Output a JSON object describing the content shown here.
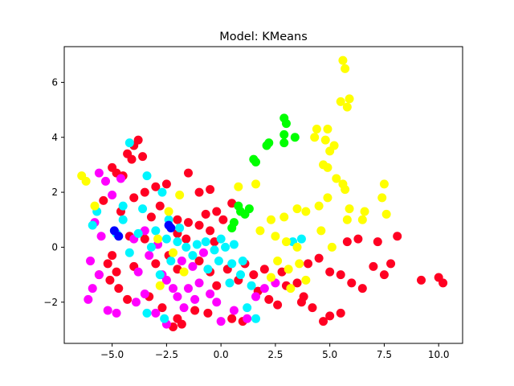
{
  "chart_data": {
    "type": "scatter",
    "title": "Model: KMeans",
    "xlabel": "",
    "ylabel": "",
    "xlim": [
      -7.2,
      11.1
    ],
    "ylim": [
      -3.5,
      7.3
    ],
    "xticks": [
      -5.0,
      -2.5,
      0.0,
      2.5,
      5.0,
      7.5,
      10.0
    ],
    "xtick_labels": [
      "−5.0",
      "−2.5",
      "0.0",
      "2.5",
      "5.0",
      "7.5",
      "10.0"
    ],
    "yticks": [
      -2,
      0,
      2,
      4,
      6
    ],
    "ytick_labels": [
      "−2",
      "0",
      "2",
      "4",
      "6"
    ],
    "grid": false,
    "legend": false,
    "series": [
      {
        "color": "#ff0022",
        "points": [
          [
            -4.3,
            3.4
          ],
          [
            -4.0,
            3.7
          ],
          [
            -3.8,
            3.9
          ],
          [
            -4.1,
            3.2
          ],
          [
            -3.6,
            3.3
          ],
          [
            -5.0,
            2.9
          ],
          [
            -4.8,
            2.7
          ],
          [
            -4.5,
            2.6
          ],
          [
            -1.5,
            2.7
          ],
          [
            -2.5,
            2.3
          ],
          [
            -3.5,
            2.0
          ],
          [
            -3.0,
            2.2
          ],
          [
            -5.4,
            1.7
          ],
          [
            -4.0,
            1.8
          ],
          [
            -1.0,
            2.0
          ],
          [
            -0.5,
            2.1
          ],
          [
            -0.2,
            1.3
          ],
          [
            0.1,
            1.0
          ],
          [
            -0.7,
            1.2
          ],
          [
            0.5,
            1.6
          ],
          [
            -3.2,
            1.1
          ],
          [
            -4.6,
            1.3
          ],
          [
            -2.8,
            1.5
          ],
          [
            -2.0,
            1.0
          ],
          [
            -1.5,
            0.9
          ],
          [
            -1.0,
            0.8
          ],
          [
            -0.5,
            0.6
          ],
          [
            -3.5,
            0.3
          ],
          [
            -4.2,
            0.4
          ],
          [
            -2.0,
            0.5
          ],
          [
            -5.0,
            -0.3
          ],
          [
            -5.2,
            -0.6
          ],
          [
            -4.8,
            -0.9
          ],
          [
            -5.1,
            -1.2
          ],
          [
            -4.7,
            -1.5
          ],
          [
            -4.0,
            -0.7
          ],
          [
            -3.0,
            -0.6
          ],
          [
            -2.0,
            -0.8
          ],
          [
            -1.0,
            -0.5
          ],
          [
            -0.5,
            -0.9
          ],
          [
            0.3,
            -0.8
          ],
          [
            -0.2,
            -1.4
          ],
          [
            0.8,
            -1.2
          ],
          [
            1.5,
            -1.0
          ],
          [
            2.0,
            -0.8
          ],
          [
            1.7,
            -1.6
          ],
          [
            2.2,
            -1.9
          ],
          [
            2.6,
            -2.1
          ],
          [
            3.0,
            -1.4
          ],
          [
            3.5,
            -1.3
          ],
          [
            3.8,
            -1.8
          ],
          [
            4.2,
            -2.2
          ],
          [
            3.7,
            -2.0
          ],
          [
            4.0,
            -0.6
          ],
          [
            4.5,
            -0.4
          ],
          [
            5.0,
            -0.9
          ],
          [
            5.5,
            -1.0
          ],
          [
            6.0,
            -1.3
          ],
          [
            6.5,
            -1.5
          ],
          [
            7.0,
            -0.7
          ],
          [
            7.5,
            -1.0
          ],
          [
            7.8,
            -0.6
          ],
          [
            8.1,
            0.4
          ],
          [
            7.2,
            0.2
          ],
          [
            6.3,
            0.3
          ],
          [
            5.8,
            0.2
          ],
          [
            9.2,
            -1.2
          ],
          [
            10.0,
            -1.1
          ],
          [
            10.2,
            -1.3
          ],
          [
            5.0,
            -2.5
          ],
          [
            4.7,
            -2.7
          ],
          [
            5.5,
            -2.4
          ],
          [
            -2.0,
            -2.6
          ],
          [
            -2.2,
            -2.9
          ],
          [
            -1.8,
            -2.8
          ],
          [
            0.5,
            -2.6
          ],
          [
            1.0,
            -2.7
          ],
          [
            -3.3,
            -1.8
          ],
          [
            -2.7,
            -2.2
          ],
          [
            -1.2,
            -2.3
          ],
          [
            -0.6,
            -2.4
          ],
          [
            -5.6,
            -1.0
          ],
          [
            -4.3,
            -1.9
          ],
          [
            -0.3,
            0.2
          ],
          [
            1.1,
            -0.6
          ],
          [
            2.8,
            -0.9
          ],
          [
            -1.6,
            0.3
          ],
          [
            -2.4,
            -0.3
          ]
        ]
      },
      {
        "color": "#ff00ff",
        "points": [
          [
            -5.6,
            2.7
          ],
          [
            -5.3,
            2.4
          ],
          [
            -4.6,
            2.5
          ],
          [
            -5.0,
            1.9
          ],
          [
            -5.8,
            0.9
          ],
          [
            -5.5,
            0.4
          ],
          [
            -6.0,
            -0.5
          ],
          [
            -5.6,
            -1.0
          ],
          [
            -5.9,
            -1.5
          ],
          [
            -6.1,
            -1.9
          ],
          [
            -5.2,
            -2.3
          ],
          [
            -4.8,
            -2.4
          ],
          [
            -3.5,
            -1.7
          ],
          [
            -3.0,
            -2.4
          ],
          [
            -2.5,
            -2.8
          ],
          [
            -2.0,
            -1.8
          ],
          [
            -1.5,
            -1.5
          ],
          [
            -1.0,
            -1.3
          ],
          [
            -0.5,
            -1.7
          ],
          [
            -0.2,
            -2.0
          ],
          [
            -1.2,
            -1.9
          ],
          [
            -2.2,
            -1.5
          ],
          [
            -2.7,
            -1.0
          ],
          [
            -1.8,
            -0.5
          ],
          [
            -1.3,
            -0.7
          ],
          [
            -3.5,
            0.6
          ],
          [
            -4.0,
            0.3
          ],
          [
            -2.9,
            0.1
          ],
          [
            -3.3,
            -0.3
          ],
          [
            1.2,
            -2.6
          ],
          [
            1.6,
            -1.8
          ],
          [
            2.0,
            -1.5
          ],
          [
            2.5,
            -1.3
          ],
          [
            -3.8,
            -0.9
          ],
          [
            -2.5,
            -1.2
          ],
          [
            -0.8,
            -0.2
          ],
          [
            0.0,
            -2.7
          ],
          [
            0.6,
            -2.3
          ],
          [
            -3.9,
            -2.0
          ],
          [
            -1.7,
            -2.2
          ]
        ]
      },
      {
        "color": "#00f5ff",
        "points": [
          [
            -4.2,
            3.8
          ],
          [
            -3.4,
            2.6
          ],
          [
            -2.7,
            2.0
          ],
          [
            -5.7,
            1.3
          ],
          [
            -4.5,
            1.5
          ],
          [
            -3.6,
            1.4
          ],
          [
            -2.4,
            1.0
          ],
          [
            -1.9,
            0.7
          ],
          [
            -4.8,
            0.5
          ],
          [
            -3.8,
            0.5
          ],
          [
            -3.0,
            0.6
          ],
          [
            -2.5,
            0.3
          ],
          [
            -2.0,
            0.2
          ],
          [
            -1.6,
            0.0
          ],
          [
            -1.1,
            0.1
          ],
          [
            -0.7,
            0.2
          ],
          [
            -0.3,
            -0.1
          ],
          [
            0.2,
            0.0
          ],
          [
            0.6,
            0.1
          ],
          [
            -0.1,
            -0.5
          ],
          [
            0.5,
            -0.6
          ],
          [
            1.0,
            -0.5
          ],
          [
            -3.2,
            0.0
          ],
          [
            -4.2,
            -0.2
          ],
          [
            -2.3,
            -0.5
          ],
          [
            -1.3,
            -0.3
          ],
          [
            0.4,
            -1.3
          ],
          [
            0.9,
            -1.0
          ],
          [
            1.4,
            -1.4
          ],
          [
            1.2,
            -2.2
          ],
          [
            1.6,
            -2.6
          ],
          [
            -3.4,
            -2.4
          ],
          [
            -2.6,
            -2.6
          ],
          [
            -5.9,
            0.8
          ],
          [
            -4.5,
            1.0
          ],
          [
            3.3,
            0.2
          ],
          [
            3.7,
            0.3
          ],
          [
            -2.8,
            -1.0
          ],
          [
            -0.6,
            -0.8
          ],
          [
            0.0,
            0.3
          ]
        ]
      },
      {
        "color": "#ffff00",
        "points": [
          [
            5.6,
            6.8
          ],
          [
            5.7,
            6.5
          ],
          [
            5.5,
            5.3
          ],
          [
            5.8,
            5.1
          ],
          [
            5.9,
            5.4
          ],
          [
            4.4,
            4.3
          ],
          [
            4.3,
            4.0
          ],
          [
            4.9,
            4.3
          ],
          [
            4.8,
            3.9
          ],
          [
            5.2,
            3.7
          ],
          [
            5.0,
            3.5
          ],
          [
            4.7,
            3.0
          ],
          [
            4.9,
            2.9
          ],
          [
            5.3,
            2.5
          ],
          [
            5.6,
            2.3
          ],
          [
            5.7,
            2.1
          ],
          [
            7.5,
            2.3
          ],
          [
            7.4,
            1.8
          ],
          [
            7.6,
            1.2
          ],
          [
            6.6,
            1.3
          ],
          [
            6.5,
            1.0
          ],
          [
            5.9,
            1.4
          ],
          [
            5.8,
            1.0
          ],
          [
            4.9,
            1.8
          ],
          [
            4.5,
            1.5
          ],
          [
            3.5,
            1.4
          ],
          [
            3.9,
            1.3
          ],
          [
            2.9,
            1.1
          ],
          [
            2.3,
            1.0
          ],
          [
            1.8,
            0.6
          ],
          [
            0.8,
            2.2
          ],
          [
            1.6,
            2.3
          ],
          [
            2.5,
            0.4
          ],
          [
            3.0,
            0.2
          ],
          [
            3.5,
            0.0
          ],
          [
            2.6,
            -0.5
          ],
          [
            3.1,
            -0.8
          ],
          [
            2.3,
            -1.1
          ],
          [
            3.6,
            -0.6
          ],
          [
            4.6,
            0.6
          ],
          [
            5.1,
            0.0
          ],
          [
            -6.4,
            2.6
          ],
          [
            -6.2,
            2.4
          ],
          [
            -5.8,
            1.5
          ],
          [
            -1.9,
            1.9
          ],
          [
            -2.4,
            1.3
          ],
          [
            -2.9,
            0.3
          ],
          [
            -2.2,
            -0.2
          ],
          [
            -2.8,
            -1.4
          ],
          [
            -1.7,
            -0.9
          ],
          [
            3.9,
            -1.2
          ],
          [
            3.2,
            -1.5
          ]
        ]
      },
      {
        "color": "#00ff00",
        "points": [
          [
            2.9,
            4.7
          ],
          [
            3.0,
            4.5
          ],
          [
            2.9,
            4.1
          ],
          [
            2.9,
            3.8
          ],
          [
            3.4,
            4.0
          ],
          [
            2.2,
            3.8
          ],
          [
            2.1,
            3.7
          ],
          [
            1.6,
            3.1
          ],
          [
            1.5,
            3.2
          ],
          [
            1.3,
            1.4
          ],
          [
            1.1,
            1.2
          ],
          [
            0.8,
            1.5
          ],
          [
            0.9,
            1.3
          ],
          [
            0.6,
            0.9
          ],
          [
            0.5,
            0.7
          ]
        ]
      },
      {
        "color": "#0000ff",
        "points": [
          [
            -2.4,
            0.8
          ],
          [
            -2.3,
            0.7
          ],
          [
            -4.9,
            0.6
          ],
          [
            -4.7,
            0.4
          ]
        ]
      }
    ]
  }
}
